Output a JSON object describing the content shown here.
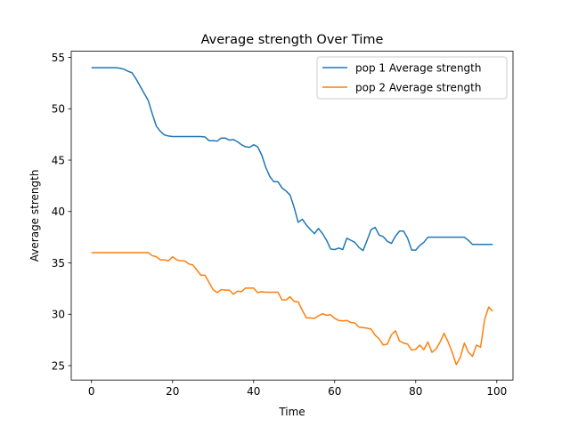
{
  "chart_data": {
    "type": "line",
    "title": "Average strength Over Time",
    "xlabel": "Time",
    "ylabel": "Average strength",
    "xlim": [
      -5,
      104
    ],
    "ylim": [
      23.6,
      55.6
    ],
    "xticks": [
      0,
      20,
      40,
      60,
      80,
      100
    ],
    "yticks": [
      25,
      30,
      35,
      40,
      45,
      50,
      55
    ],
    "grid": false,
    "legend_position": "upper right",
    "series": [
      {
        "name": "pop 1 Average strength",
        "color": "#1f77b4",
        "values": [
          54.0,
          54.0,
          54.0,
          54.0,
          54.0,
          54.0,
          54.0,
          53.95,
          53.85,
          53.65,
          53.5,
          52.9,
          52.2,
          51.5,
          50.8,
          49.5,
          48.3,
          47.8,
          47.45,
          47.35,
          47.3,
          47.3,
          47.3,
          47.3,
          47.3,
          47.3,
          47.3,
          47.3,
          47.25,
          46.9,
          46.9,
          46.85,
          47.15,
          47.15,
          46.95,
          47.0,
          46.8,
          46.5,
          46.3,
          46.25,
          46.5,
          46.3,
          45.5,
          44.3,
          43.4,
          42.9,
          42.9,
          42.3,
          42.0,
          41.6,
          40.4,
          38.95,
          39.25,
          38.7,
          38.25,
          37.85,
          38.35,
          37.85,
          37.2,
          36.35,
          36.3,
          36.45,
          36.3,
          37.4,
          37.2,
          37.0,
          36.5,
          36.2,
          37.2,
          38.25,
          38.45,
          37.7,
          37.55,
          37.1,
          36.9,
          37.6,
          38.1,
          38.1,
          37.4,
          36.25,
          36.25,
          36.7,
          37.0,
          37.5,
          37.5,
          37.5,
          37.5,
          37.5,
          37.5,
          37.5,
          37.5,
          37.5,
          37.5,
          37.2,
          36.8,
          36.8,
          36.8,
          36.8,
          36.8,
          36.8
        ],
        "x_start": 0
      },
      {
        "name": "pop 2 Average strength",
        "color": "#ff7f0e",
        "values": [
          36.0,
          36.0,
          36.0,
          36.0,
          36.0,
          36.0,
          36.0,
          36.0,
          36.0,
          36.0,
          36.0,
          36.0,
          36.0,
          36.0,
          36.0,
          35.7,
          35.6,
          35.3,
          35.3,
          35.2,
          35.6,
          35.3,
          35.2,
          35.2,
          34.9,
          34.8,
          34.3,
          33.8,
          33.8,
          33.1,
          32.4,
          32.1,
          32.4,
          32.35,
          32.35,
          31.95,
          32.25,
          32.2,
          32.55,
          32.55,
          32.55,
          32.1,
          32.2,
          32.15,
          32.15,
          32.15,
          32.15,
          31.4,
          31.4,
          31.7,
          31.25,
          31.2,
          30.4,
          29.65,
          29.65,
          29.6,
          29.85,
          30.05,
          29.9,
          29.95,
          29.6,
          29.4,
          29.35,
          29.4,
          29.2,
          29.15,
          28.75,
          28.7,
          28.65,
          28.55,
          27.95,
          27.6,
          27.0,
          27.1,
          28.0,
          28.4,
          27.4,
          27.2,
          27.1,
          26.5,
          26.6,
          27.0,
          26.55,
          27.3,
          26.3,
          26.6,
          27.3,
          28.15,
          27.3,
          26.3,
          25.1,
          25.8,
          27.2,
          26.3,
          25.9,
          27.0,
          26.8,
          29.5,
          30.7,
          30.3
        ],
        "x_start": 0
      }
    ]
  }
}
